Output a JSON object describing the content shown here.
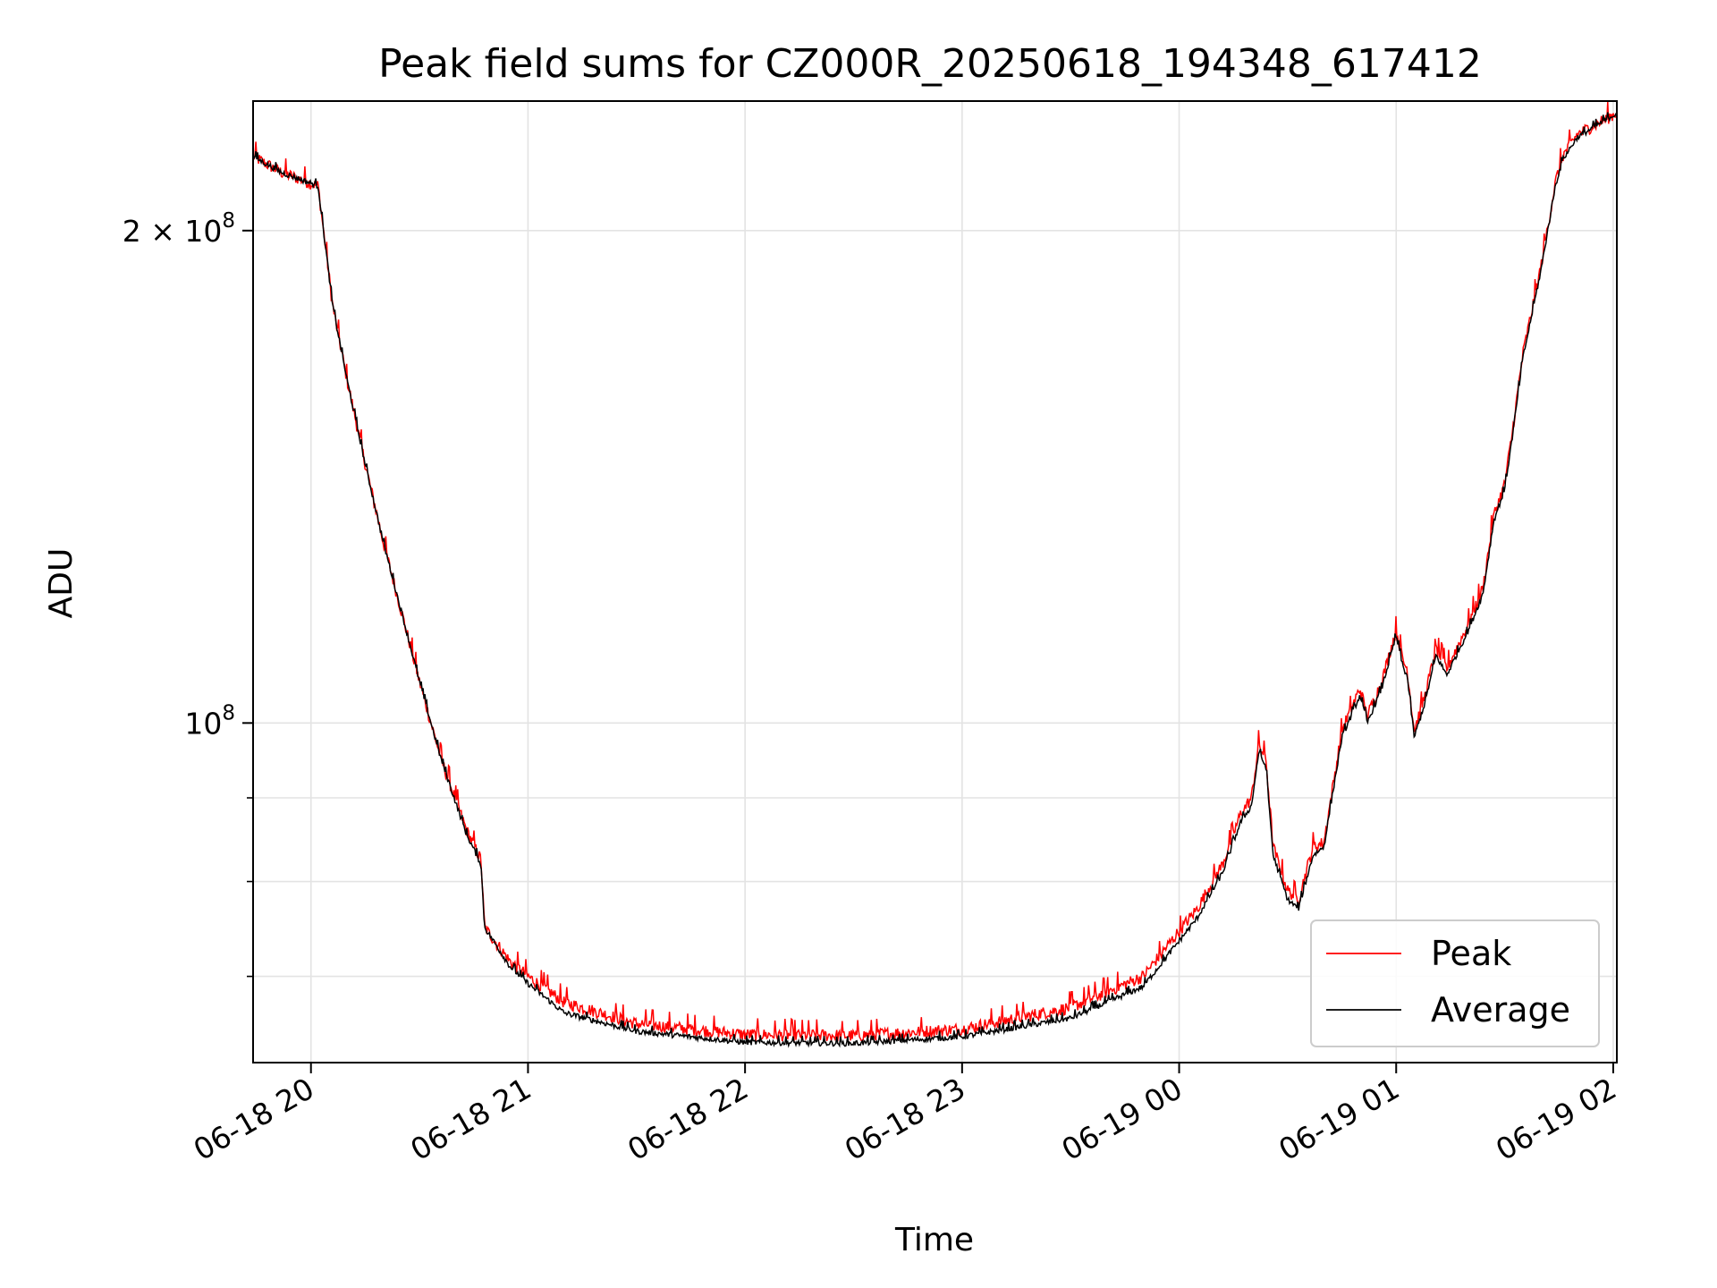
{
  "chart_data": {
    "type": "line",
    "title": "Peak field sums for CZ000R_20250618_194348_617412",
    "xlabel": "Time",
    "ylabel": "ADU",
    "yscale": "log",
    "xlim": [
      "2025-06-18 19:44",
      "2025-06-19 02:01"
    ],
    "ylim": [
      62000000,
      240000000
    ],
    "grid": true,
    "legend_position": "lower right",
    "x_ticks": [
      {
        "t": "2025-06-18 20:00",
        "label": "06-18 20"
      },
      {
        "t": "2025-06-18 21:00",
        "label": "06-18 21"
      },
      {
        "t": "2025-06-18 22:00",
        "label": "06-18 22"
      },
      {
        "t": "2025-06-18 23:00",
        "label": "06-18 23"
      },
      {
        "t": "2025-06-19 00:00",
        "label": "06-19 00"
      },
      {
        "t": "2025-06-19 01:00",
        "label": "06-19 01"
      },
      {
        "t": "2025-06-19 02:00",
        "label": "06-19 02"
      }
    ],
    "y_ticks": [
      {
        "value": 100000000,
        "mantissa": "",
        "exponent": "8"
      },
      {
        "value": 200000000,
        "mantissa": "2 × ",
        "exponent": "8"
      }
    ],
    "y_minor_ticks": [
      70000000,
      80000000,
      90000000
    ],
    "series": [
      {
        "name": "Peak",
        "color": "#ff0000",
        "noise_amp": 0.018,
        "points": [
          [
            "2025-06-18 19:44",
            222000000
          ],
          [
            "2025-06-18 19:52",
            217000000
          ],
          [
            "2025-06-18 20:02",
            213000000
          ],
          [
            "2025-06-18 20:03",
            204000000
          ],
          [
            "2025-06-18 20:06",
            180000000
          ],
          [
            "2025-06-18 20:10",
            162000000
          ],
          [
            "2025-06-18 20:15",
            144000000
          ],
          [
            "2025-06-18 20:20",
            129000000
          ],
          [
            "2025-06-18 20:25",
            117000000
          ],
          [
            "2025-06-18 20:30",
            106000000
          ],
          [
            "2025-06-18 20:36",
            95000000
          ],
          [
            "2025-06-18 20:43",
            86000000
          ],
          [
            "2025-06-18 20:47",
            82500000
          ],
          [
            "2025-06-18 20:48",
            75000000
          ],
          [
            "2025-06-18 20:55",
            71500000
          ],
          [
            "2025-06-18 21:00",
            70000000
          ],
          [
            "2025-06-18 21:10",
            67500000
          ],
          [
            "2025-06-18 21:30",
            65500000
          ],
          [
            "2025-06-18 22:00",
            64500000
          ],
          [
            "2025-06-18 22:30",
            64400000
          ],
          [
            "2025-06-18 23:00",
            65000000
          ],
          [
            "2025-06-18 23:30",
            67000000
          ],
          [
            "2025-06-18 23:50",
            70000000
          ],
          [
            "2025-06-19 00:05",
            77000000
          ],
          [
            "2025-06-19 00:12",
            82000000
          ],
          [
            "2025-06-19 00:17",
            88000000
          ],
          [
            "2025-06-19 00:20",
            90000000
          ],
          [
            "2025-06-19 00:22",
            97000000
          ],
          [
            "2025-06-19 00:24",
            95000000
          ],
          [
            "2025-06-19 00:26",
            84000000
          ],
          [
            "2025-06-19 00:30",
            79000000
          ],
          [
            "2025-06-19 00:33",
            78000000
          ],
          [
            "2025-06-19 00:37",
            84000000
          ],
          [
            "2025-06-19 00:40",
            84500000
          ],
          [
            "2025-06-19 00:45",
            99000000
          ],
          [
            "2025-06-19 00:50",
            105000000
          ],
          [
            "2025-06-19 00:52",
            101000000
          ],
          [
            "2025-06-19 00:56",
            106000000
          ],
          [
            "2025-06-19 00:58",
            110000000
          ],
          [
            "2025-06-19 01:00",
            114000000
          ],
          [
            "2025-06-19 01:02",
            109000000
          ],
          [
            "2025-06-19 01:03",
            108000000
          ],
          [
            "2025-06-19 01:05",
            99000000
          ],
          [
            "2025-06-19 01:08",
            104000000
          ],
          [
            "2025-06-19 01:11",
            111000000
          ],
          [
            "2025-06-19 01:14",
            108000000
          ],
          [
            "2025-06-19 01:20",
            115000000
          ],
          [
            "2025-06-19 01:24",
            121000000
          ],
          [
            "2025-06-19 01:27",
            134000000
          ],
          [
            "2025-06-19 01:30",
            140000000
          ],
          [
            "2025-06-19 01:32",
            150000000
          ],
          [
            "2025-06-19 01:35",
            168000000
          ],
          [
            "2025-06-19 01:40",
            190000000
          ],
          [
            "2025-06-19 01:44",
            214000000
          ],
          [
            "2025-06-19 01:46",
            222000000
          ],
          [
            "2025-06-19 01:50",
            229000000
          ],
          [
            "2025-06-19 02:01",
            236000000
          ]
        ]
      },
      {
        "name": "Average",
        "color": "#000000",
        "noise_amp": 0.008,
        "points": [
          [
            "2025-06-18 19:44",
            222000000
          ],
          [
            "2025-06-18 19:52",
            217000000
          ],
          [
            "2025-06-18 20:02",
            213000000
          ],
          [
            "2025-06-18 20:03",
            204000000
          ],
          [
            "2025-06-18 20:06",
            180000000
          ],
          [
            "2025-06-18 20:10",
            162000000
          ],
          [
            "2025-06-18 20:15",
            144000000
          ],
          [
            "2025-06-18 20:20",
            129000000
          ],
          [
            "2025-06-18 20:25",
            117000000
          ],
          [
            "2025-06-18 20:30",
            106000000
          ],
          [
            "2025-06-18 20:36",
            95000000
          ],
          [
            "2025-06-18 20:43",
            85500000
          ],
          [
            "2025-06-18 20:47",
            82000000
          ],
          [
            "2025-06-18 20:48",
            75000000
          ],
          [
            "2025-06-18 20:55",
            71000000
          ],
          [
            "2025-06-18 21:00",
            69300000
          ],
          [
            "2025-06-18 21:10",
            66500000
          ],
          [
            "2025-06-18 21:30",
            64800000
          ],
          [
            "2025-06-18 22:00",
            63800000
          ],
          [
            "2025-06-18 22:30",
            63700000
          ],
          [
            "2025-06-18 23:00",
            64300000
          ],
          [
            "2025-06-18 23:30",
            66000000
          ],
          [
            "2025-06-18 23:50",
            69000000
          ],
          [
            "2025-06-19 00:05",
            76000000
          ],
          [
            "2025-06-19 00:12",
            81000000
          ],
          [
            "2025-06-19 00:17",
            87000000
          ],
          [
            "2025-06-19 00:20",
            89000000
          ],
          [
            "2025-06-19 00:22",
            96000000
          ],
          [
            "2025-06-19 00:24",
            94000000
          ],
          [
            "2025-06-19 00:26",
            83000000
          ],
          [
            "2025-06-19 00:30",
            78000000
          ],
          [
            "2025-06-19 00:33",
            77000000
          ],
          [
            "2025-06-19 00:37",
            83000000
          ],
          [
            "2025-06-19 00:40",
            84000000
          ],
          [
            "2025-06-19 00:45",
            98000000
          ],
          [
            "2025-06-19 00:50",
            104000000
          ],
          [
            "2025-06-19 00:52",
            100000000
          ],
          [
            "2025-06-19 00:56",
            105000000
          ],
          [
            "2025-06-19 00:58",
            109000000
          ],
          [
            "2025-06-19 01:00",
            113000000
          ],
          [
            "2025-06-19 01:02",
            108000000
          ],
          [
            "2025-06-19 01:03",
            107000000
          ],
          [
            "2025-06-19 01:05",
            98000000
          ],
          [
            "2025-06-19 01:08",
            103000000
          ],
          [
            "2025-06-19 01:11",
            110000000
          ],
          [
            "2025-06-19 01:14",
            107000000
          ],
          [
            "2025-06-19 01:20",
            114000000
          ],
          [
            "2025-06-19 01:24",
            120000000
          ],
          [
            "2025-06-19 01:27",
            133000000
          ],
          [
            "2025-06-19 01:30",
            139000000
          ],
          [
            "2025-06-19 01:32",
            149000000
          ],
          [
            "2025-06-19 01:35",
            167000000
          ],
          [
            "2025-06-19 01:40",
            189000000
          ],
          [
            "2025-06-19 01:44",
            213000000
          ],
          [
            "2025-06-19 01:46",
            221000000
          ],
          [
            "2025-06-19 01:50",
            228000000
          ],
          [
            "2025-06-19 02:01",
            236000000
          ]
        ]
      }
    ]
  }
}
